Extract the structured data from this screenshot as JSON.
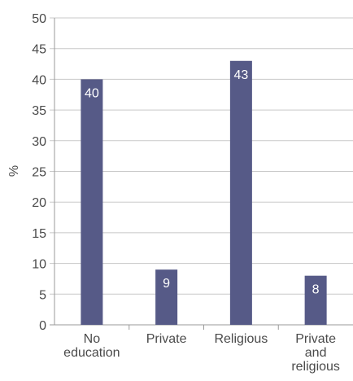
{
  "chart_data": {
    "type": "bar",
    "title": "",
    "xlabel": "",
    "ylabel": "%",
    "ylim": [
      0,
      50
    ],
    "yticks": [
      0,
      5,
      10,
      15,
      20,
      25,
      30,
      35,
      40,
      45,
      50
    ],
    "grid": true,
    "categories": [
      [
        "No",
        "education"
      ],
      [
        "Private"
      ],
      [
        "Religious"
      ],
      [
        "Private",
        "and",
        "religious"
      ]
    ],
    "values": [
      40,
      9,
      43,
      8
    ],
    "bar_color": "#565a87",
    "label_colors": [
      "#ffffff",
      "#ffffff",
      "#ffffff",
      "#ffffff"
    ],
    "grid_color": "#c8c8c8",
    "text_color": "#4a4a4a"
  }
}
